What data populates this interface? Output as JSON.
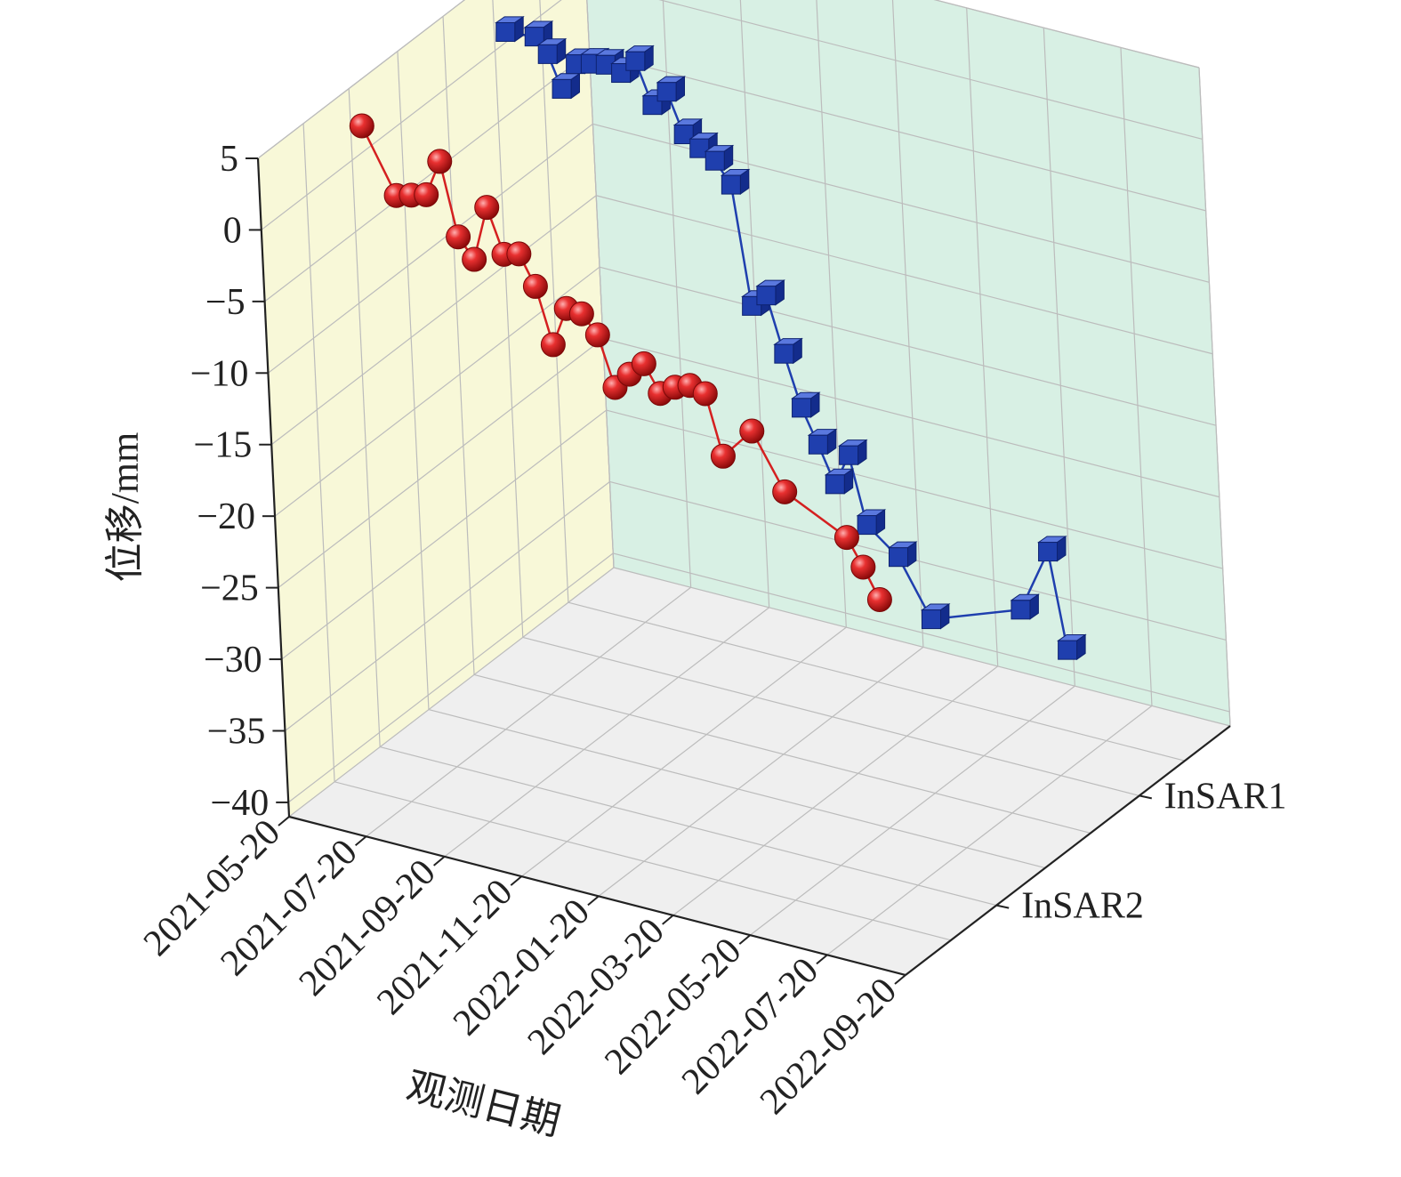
{
  "chart_data": {
    "type": "line",
    "projection": "3d",
    "ylabel": "位移/mm",
    "xlabel": "观测日期",
    "zlabel": "",
    "x_ticks": [
      "2021-05-20",
      "2021-07-20",
      "2021-09-20",
      "2021-11-20",
      "2022-01-20",
      "2022-03-20",
      "2022-05-20",
      "2022-07-20",
      "2022-09-20"
    ],
    "y_ticks": [
      5,
      0,
      -5,
      -10,
      -15,
      -20,
      -25,
      -30,
      -35,
      -40
    ],
    "ylim": [
      -41,
      5
    ],
    "z_categories": [
      "InSAR1",
      "InSAR2"
    ],
    "grid": true,
    "colors": {
      "left_wall": "#f8f8d8",
      "back_wall": "#d8f0e4",
      "floor": "#efefef",
      "grid": "#bcbcbc",
      "axis": "#222222"
    },
    "series": [
      {
        "name": "InSAR1",
        "marker": "cube",
        "color": "#1f3fae",
        "points": [
          [
            "2021-05-29",
            1.5
          ],
          [
            "2021-06-21",
            1.7
          ],
          [
            "2021-07-01",
            0.7
          ],
          [
            "2021-07-11",
            -1.5
          ],
          [
            "2021-07-23",
            0.5
          ],
          [
            "2021-08-04",
            0.8
          ],
          [
            "2021-08-16",
            1.0
          ],
          [
            "2021-08-28",
            0.7
          ],
          [
            "2021-09-09",
            1.8
          ],
          [
            "2021-09-21",
            -1.0
          ],
          [
            "2021-10-03",
            0.2
          ],
          [
            "2021-10-15",
            -2.5
          ],
          [
            "2021-10-27",
            -3.2
          ],
          [
            "2021-11-08",
            -3.8
          ],
          [
            "2021-11-20",
            -5.2
          ],
          [
            "2021-12-02",
            -13.4
          ],
          [
            "2021-12-14",
            -12.4
          ],
          [
            "2021-12-26",
            -16.2
          ],
          [
            "2022-01-07",
            -19.7
          ],
          [
            "2022-01-19",
            -22.0
          ],
          [
            "2022-01-31",
            -24.5
          ],
          [
            "2022-02-12",
            -22.2
          ],
          [
            "2022-02-24",
            -26.8
          ],
          [
            "2022-03-20",
            -28.5
          ],
          [
            "2022-04-13",
            -32.3
          ],
          [
            "2022-06-24",
            -30.0
          ],
          [
            "2022-07-18",
            -25.4
          ],
          [
            "2022-07-30",
            -32.0
          ]
        ]
      },
      {
        "name": "InSAR2",
        "marker": "sphere",
        "color": "#d42020",
        "points": [
          [
            "2021-05-29",
            2.6
          ],
          [
            "2021-06-23",
            -1.7
          ],
          [
            "2021-07-05",
            -1.4
          ],
          [
            "2021-07-17",
            -1.1
          ],
          [
            "2021-07-29",
            1.5
          ],
          [
            "2021-08-10",
            -3.5
          ],
          [
            "2021-08-22",
            -4.8
          ],
          [
            "2021-09-03",
            -0.9
          ],
          [
            "2021-09-15",
            -3.9
          ],
          [
            "2021-09-27",
            -3.6
          ],
          [
            "2021-10-09",
            -5.6
          ],
          [
            "2021-10-21",
            -9.4
          ],
          [
            "2021-11-02",
            -6.6
          ],
          [
            "2021-11-14",
            -6.7
          ],
          [
            "2021-11-26",
            -7.9
          ],
          [
            "2021-12-08",
            -11.3
          ],
          [
            "2021-12-20",
            -10.1
          ],
          [
            "2022-01-01",
            -9.1
          ],
          [
            "2022-01-13",
            -10.9
          ],
          [
            "2022-01-25",
            -10.2
          ],
          [
            "2022-02-06",
            -9.8
          ],
          [
            "2022-02-18",
            -10.1
          ],
          [
            "2022-03-02",
            -14.2
          ],
          [
            "2022-03-26",
            -11.9
          ],
          [
            "2022-04-19",
            -15.6
          ],
          [
            "2022-06-06",
            -17.7
          ],
          [
            "2022-06-18",
            -19.5
          ],
          [
            "2022-06-30",
            -21.5
          ]
        ]
      }
    ]
  }
}
